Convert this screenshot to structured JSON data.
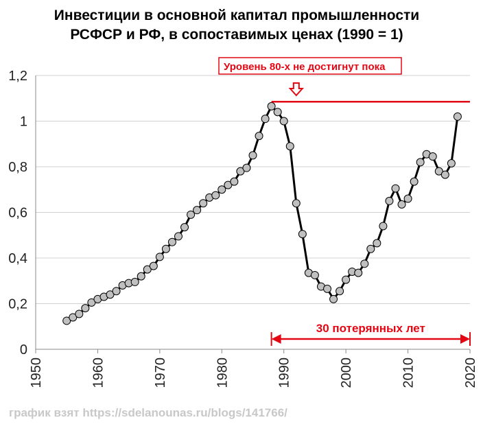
{
  "chart_data": {
    "type": "line",
    "title_lines": [
      "Инвестиции в основной капитал промышленности",
      "РСФСР и РФ, в сопоставимых ценах (1990 = 1)"
    ],
    "xlabel": "",
    "ylabel": "",
    "xlim": [
      1950,
      2020
    ],
    "ylim": [
      0,
      1.2
    ],
    "x_ticks": [
      "1950",
      "1960",
      "1970",
      "1980",
      "1990",
      "2000",
      "2010",
      "2020"
    ],
    "y_ticks": [
      "0",
      "0,2",
      "0,4",
      "0,6",
      "0,8",
      "1",
      "1,2"
    ],
    "grid": "horizontal",
    "series": [
      {
        "color": "#000000",
        "marker_fill": "#c0c0c0",
        "x": [
          1955,
          1956,
          1957,
          1958,
          1959,
          1960,
          1961,
          1962,
          1963,
          1964,
          1965,
          1966,
          1967,
          1968,
          1969,
          1970,
          1971,
          1972,
          1973,
          1974,
          1975,
          1976,
          1977,
          1978,
          1979,
          1980,
          1981,
          1982,
          1983,
          1984,
          1985,
          1986,
          1987,
          1988,
          1989,
          1990,
          1991,
          1992,
          1993,
          1994,
          1995,
          1996,
          1997,
          1998,
          1999,
          2000,
          2001,
          2002,
          2003,
          2004,
          2005,
          2006,
          2007,
          2008,
          2009,
          2010,
          2011,
          2012,
          2013,
          2014,
          2015,
          2016,
          2017,
          2018
        ],
        "y": [
          0.125,
          0.14,
          0.155,
          0.18,
          0.205,
          0.22,
          0.23,
          0.24,
          0.255,
          0.28,
          0.29,
          0.295,
          0.32,
          0.35,
          0.365,
          0.405,
          0.44,
          0.47,
          0.495,
          0.535,
          0.59,
          0.61,
          0.64,
          0.665,
          0.675,
          0.7,
          0.72,
          0.735,
          0.78,
          0.795,
          0.85,
          0.935,
          1.01,
          1.065,
          1.04,
          1.0,
          0.89,
          0.64,
          0.505,
          0.335,
          0.325,
          0.275,
          0.265,
          0.22,
          0.255,
          0.305,
          0.34,
          0.335,
          0.375,
          0.44,
          0.465,
          0.54,
          0.65,
          0.705,
          0.635,
          0.66,
          0.735,
          0.82,
          0.855,
          0.845,
          0.78,
          0.765,
          0.815,
          1.02
        ]
      }
    ],
    "annotations": {
      "level_label": "Уровень 80-х не достигнут пока",
      "level_value": 1.085,
      "level_x_range": [
        1988,
        2020
      ],
      "level_arrow_x": 1992,
      "span_label": "30 потерянных лет",
      "span_x_range": [
        1988,
        2020
      ],
      "span_value": 0.045,
      "annotation_color": "#e30613"
    }
  },
  "footer": {
    "source_text": "график взят https://sdelanounas.ru/blogs/141766/"
  }
}
